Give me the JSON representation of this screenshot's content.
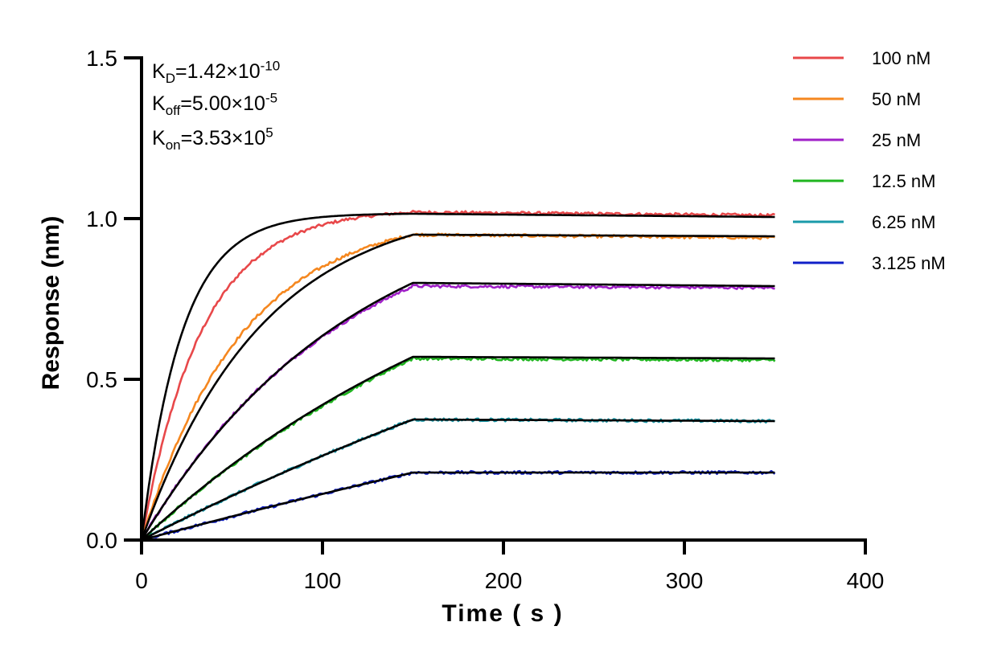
{
  "chart_data": {
    "type": "line",
    "xlabel": "Time ( s )",
    "ylabel": "Response (nm)",
    "xlim": [
      0,
      400
    ],
    "ylim": [
      0,
      1.5
    ],
    "x_ticks": [
      "0",
      "100",
      "200",
      "300",
      "400"
    ],
    "y_ticks": [
      "0.0",
      "0.5",
      "1.0",
      "1.5"
    ],
    "grid": false,
    "legend_position": "top-right",
    "association_end_s": 150,
    "end_s": 350,
    "annotations": [
      {
        "base": "K",
        "sub": "D",
        "value": "=1.42×10",
        "exp": "-10"
      },
      {
        "base": "K",
        "sub": "off",
        "value": "=5.00×10",
        "exp": "-5"
      },
      {
        "base": "K",
        "sub": "on",
        "value": "=3.53×10",
        "exp": "5"
      }
    ],
    "series": [
      {
        "name": "100 nM",
        "color": "#e8484a",
        "plateau": 1.02,
        "fit_plateau": 1.015,
        "k_obs_data": 0.03,
        "k_obs_fit": 0.045,
        "end_value": 1.01,
        "fit_end": 1.005
      },
      {
        "name": "50 nM",
        "color": "#f5871f",
        "plateau": 0.95,
        "fit_plateau": 0.95,
        "k_obs_data": 0.018,
        "k_obs_fit": 0.015,
        "end_value": 0.94,
        "fit_end": 0.945
      },
      {
        "name": "25 nM",
        "color": "#a020c8",
        "plateau": 0.79,
        "fit_plateau": 0.8,
        "k_obs_data": 0.009,
        "k_obs_fit": 0.0085,
        "end_value": 0.785,
        "fit_end": 0.79
      },
      {
        "name": "12.5 nM",
        "color": "#1fb51f",
        "plateau": 0.565,
        "fit_plateau": 0.57,
        "k_obs_data": 0.0045,
        "k_obs_fit": 0.0045,
        "end_value": 0.56,
        "fit_end": 0.565
      },
      {
        "name": "6.25 nM",
        "color": "#1a9aaa",
        "plateau": 0.375,
        "fit_plateau": 0.375,
        "k_obs_data": 0.002,
        "k_obs_fit": 0.002,
        "end_value": 0.37,
        "fit_end": 0.37
      },
      {
        "name": "3.125 nM",
        "color": "#1020c8",
        "plateau": 0.21,
        "fit_plateau": 0.21,
        "k_obs_data": 0.001,
        "k_obs_fit": 0.001,
        "end_value": 0.21,
        "fit_end": 0.21
      }
    ],
    "fit_color": "#000000"
  }
}
